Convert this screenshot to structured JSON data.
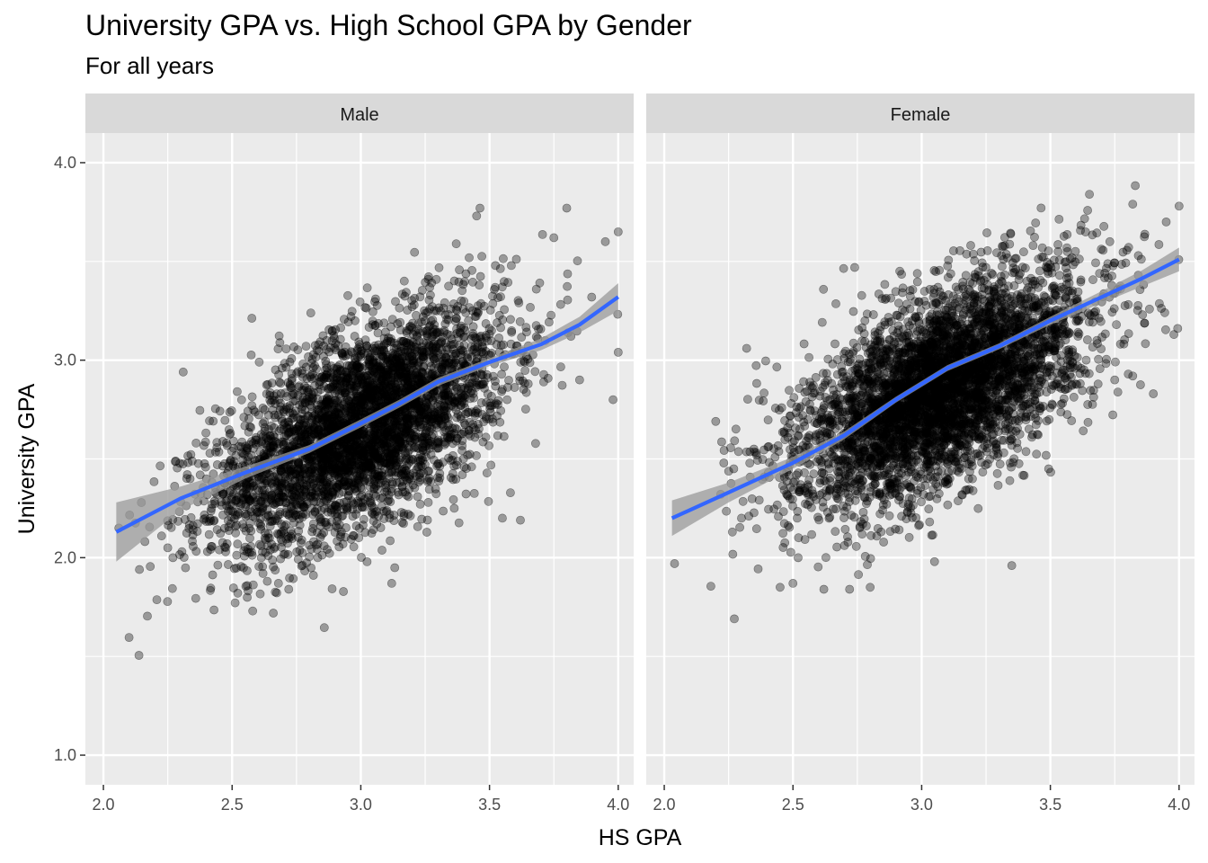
{
  "chart_data": {
    "type": "scatter",
    "title": "University GPA vs. High School GPA by Gender",
    "subtitle": "For all years",
    "xlabel": "HS GPA",
    "ylabel": "University GPA",
    "xlim": [
      1.93,
      4.06
    ],
    "ylim": [
      0.85,
      4.15
    ],
    "x_ticks": [
      2.0,
      2.5,
      3.0,
      3.5,
      4.0
    ],
    "x_tick_labels": [
      "2.0",
      "2.5",
      "3.0",
      "3.5",
      "4.0"
    ],
    "y_ticks": [
      1.0,
      2.0,
      3.0,
      4.0
    ],
    "y_tick_labels": [
      "1.0",
      "2.0",
      "3.0",
      "4.0"
    ],
    "grid": true,
    "point_color": "#000000",
    "point_alpha": 0.35,
    "smooth_color": "#3366FF",
    "ribbon_color": "#999999",
    "panel_background": "#EBEBEB",
    "strip_background": "#D9D9D9",
    "facets": [
      {
        "label": "Male",
        "smooth": {
          "x": [
            2.05,
            2.3,
            2.55,
            2.8,
            3.0,
            3.15,
            3.3,
            3.5,
            3.7,
            3.85,
            4.0
          ],
          "y": [
            2.13,
            2.3,
            2.43,
            2.55,
            2.68,
            2.78,
            2.89,
            2.99,
            3.08,
            3.18,
            3.32
          ],
          "se": [
            0.15,
            0.06,
            0.03,
            0.02,
            0.02,
            0.02,
            0.02,
            0.02,
            0.03,
            0.04,
            0.07
          ]
        },
        "cloud": {
          "x_mean": 3.0,
          "y_mean": 2.66,
          "x_sd": 0.28,
          "y_sd": 0.3,
          "slope": 0.62,
          "n": 4000
        },
        "points_outliers": {
          "x": [
            2.06,
            2.14,
            2.31,
            2.25,
            2.27,
            2.58,
            2.62,
            3.45,
            3.62,
            3.75,
            3.8,
            3.95,
            4.0,
            4.0,
            3.98,
            3.12,
            2.68,
            2.72,
            3.55,
            3.85
          ],
          "y": [
            2.15,
            1.94,
            2.94,
            2.05,
            2.0,
            1.73,
            1.92,
            3.73,
            2.19,
            3.62,
            3.77,
            3.6,
            3.65,
            3.04,
            2.8,
            1.87,
            1.87,
            1.84,
            2.2,
            2.9
          ]
        }
      },
      {
        "label": "Female",
        "smooth": {
          "x": [
            2.03,
            2.25,
            2.5,
            2.7,
            2.9,
            3.1,
            3.3,
            3.5,
            3.7,
            3.85,
            4.0
          ],
          "y": [
            2.2,
            2.33,
            2.48,
            2.62,
            2.8,
            2.96,
            3.07,
            3.2,
            3.32,
            3.41,
            3.51
          ],
          "se": [
            0.09,
            0.05,
            0.03,
            0.02,
            0.015,
            0.015,
            0.015,
            0.02,
            0.03,
            0.04,
            0.06
          ]
        },
        "cloud": {
          "x_mean": 3.08,
          "y_mean": 2.86,
          "x_sd": 0.28,
          "y_sd": 0.3,
          "slope": 0.62,
          "n": 4500
        },
        "points_outliers": {
          "x": [
            2.04,
            2.2,
            2.27,
            2.3,
            2.32,
            2.45,
            2.5,
            2.52,
            2.62,
            2.8,
            3.05,
            3.35,
            3.82,
            3.95,
            4.0,
            3.98,
            3.75,
            3.9,
            3.82,
            2.72
          ],
          "y": [
            1.97,
            2.69,
            2.45,
            2.2,
            3.06,
            1.85,
            1.87,
            2.0,
            1.84,
            1.85,
            1.98,
            1.96,
            3.79,
            3.7,
            3.78,
            3.13,
            2.9,
            2.83,
            2.92,
            1.84
          ]
        }
      }
    ]
  }
}
